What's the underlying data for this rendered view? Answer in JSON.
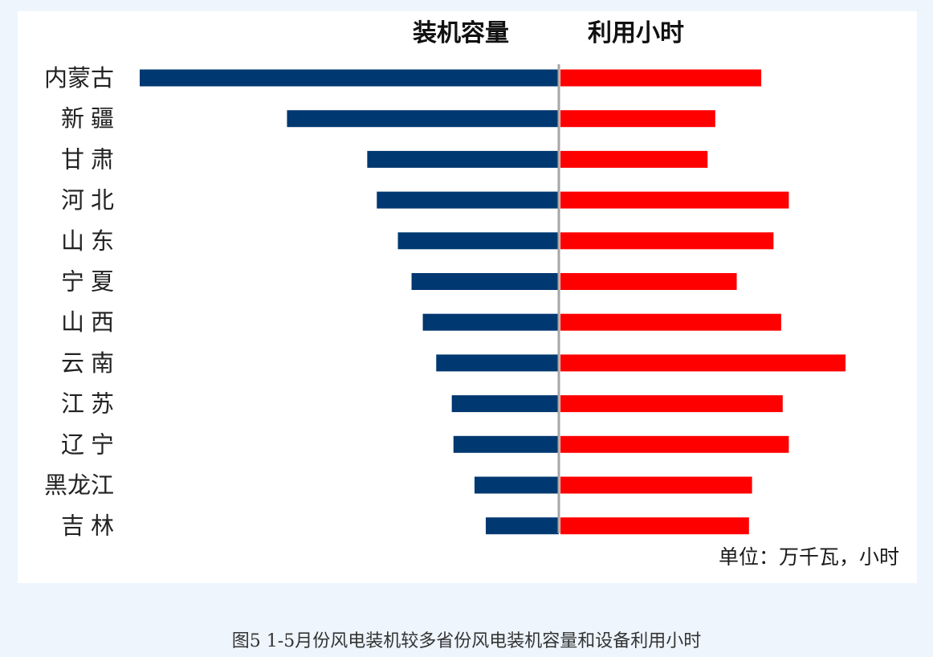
{
  "chart_data": {
    "type": "bar",
    "orientation": "horizontal-diverging",
    "categories": [
      "内蒙古",
      "新 疆",
      "甘 肃",
      "河 北",
      "山 东",
      "宁 夏",
      "山 西",
      "云 南",
      "江 苏",
      "辽 宁",
      "黑龙江",
      "吉 林"
    ],
    "series": [
      {
        "name": "装机容量",
        "direction": "left",
        "color": "#003871",
        "values": [
          1750,
          1135,
          800,
          760,
          672,
          615,
          568,
          512,
          447,
          440,
          352,
          305
        ]
      },
      {
        "name": "利用小时",
        "direction": "right",
        "color": "#ff0000",
        "values": [
          655,
          505,
          480,
          745,
          695,
          575,
          720,
          930,
          725,
          745,
          625,
          615
        ]
      }
    ],
    "unit_note": "单位：万千瓦，小时",
    "xlabel": "",
    "ylabel": ""
  },
  "caption": "图5   1-5月份风电装机较多省份风电装机容量和设备利用小时"
}
